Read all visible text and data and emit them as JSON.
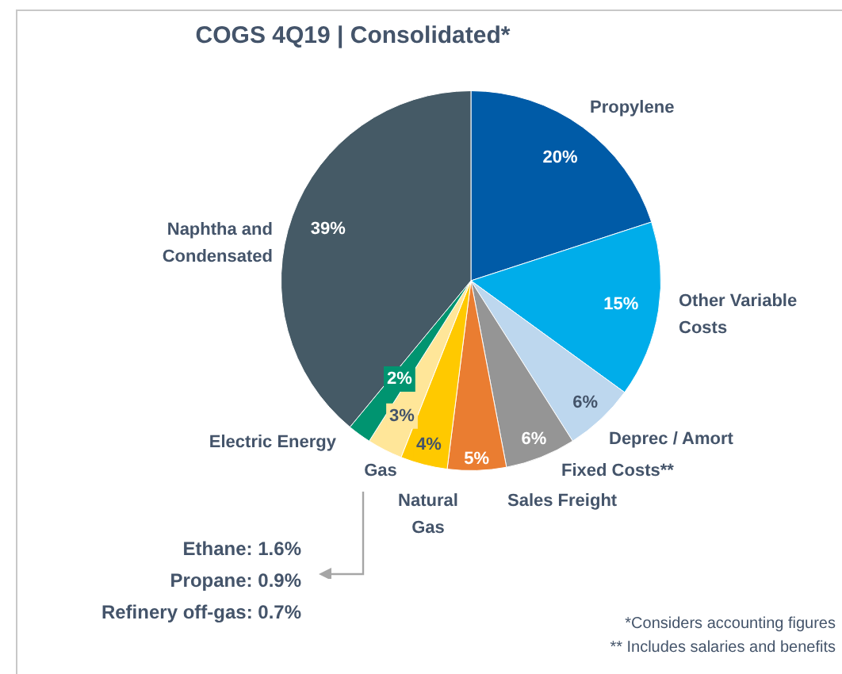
{
  "chart_data": {
    "type": "pie",
    "title": "COGS 4Q19 | Consolidated*",
    "categories": [
      "Propylene",
      "Other Variable Costs",
      "Deprec / Amort",
      "Fixed Costs**",
      "Sales Freight",
      "Natural Gas",
      "Gas",
      "Electric Energy",
      "Naphtha and Condensated"
    ],
    "values": [
      20,
      15,
      6,
      6,
      5,
      4,
      3,
      2,
      39
    ],
    "colors": [
      "#005ba7",
      "#00adea",
      "#bdd7ee",
      "#959595",
      "#ea7d31",
      "#ffc900",
      "#ffe699",
      "#009470",
      "#455a66"
    ],
    "value_labels": [
      "20%",
      "15%",
      "6%",
      "6%",
      "5%",
      "4%",
      "3%",
      "2%",
      "39%"
    ],
    "legend": false,
    "annotations": [
      "Ethane: 1.6%",
      "Propane: 0.9%",
      "Refinery off-gas: 0.7%",
      "*Considers accounting figures",
      "** Includes salaries and benefits"
    ]
  }
}
